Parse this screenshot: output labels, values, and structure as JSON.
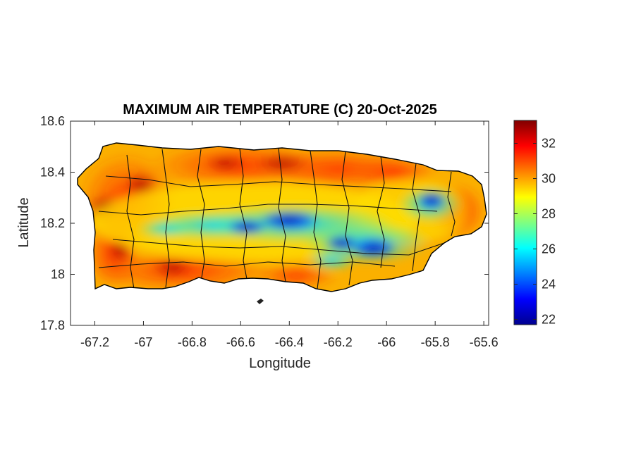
{
  "map": {
    "title": "MAXIMUM AIR TEMPERATURE (C) 20-Oct-2025",
    "xlabel": "Longitude",
    "ylabel": "Latitude",
    "xlim": [
      -67.3,
      -65.58
    ],
    "ylim": [
      17.8,
      18.6
    ],
    "xticks": [
      -67.2,
      -67,
      -66.8,
      -66.6,
      -66.4,
      -66.2,
      -66,
      -65.8,
      -65.6
    ],
    "xtick_labels": [
      "-67.2",
      "-67",
      "-66.8",
      "-66.6",
      "-66.4",
      "-66.2",
      "-66",
      "-65.8",
      "-65.6"
    ],
    "yticks": [
      17.8,
      18,
      18.2,
      18.4,
      18.6
    ],
    "ytick_labels": [
      "17.8",
      "18",
      "18.2",
      "18.4",
      "18.6"
    ],
    "colormap": "jet",
    "colorbar": {
      "range": [
        21.7,
        33.3
      ],
      "ticks": [
        22,
        24,
        26,
        28,
        30,
        32
      ],
      "tick_labels": [
        "22",
        "24",
        "26",
        "28",
        "30",
        "32"
      ],
      "stops": [
        "#00008f",
        "#0000ff",
        "#0080ff",
        "#00ffff",
        "#80ff80",
        "#ffff00",
        "#ff8000",
        "#ff0000",
        "#800000"
      ]
    },
    "region": "Puerto Rico",
    "pattern": "hot coastal lowlands (30-33 C) and cool central mountain ridge (22-26 C)",
    "hotspots": [
      {
        "lon": -67.17,
        "lat": 18.28,
        "temp": 32.5
      },
      {
        "lon": -67.1,
        "lat": 18.05,
        "temp": 32
      },
      {
        "lon": -67.05,
        "lat": 18.35,
        "temp": 32
      },
      {
        "lon": -66.45,
        "lat": 18.44,
        "temp": 32
      },
      {
        "lon": -66.7,
        "lat": 18.43,
        "temp": 31.5
      },
      {
        "lon": -66.1,
        "lat": 18.4,
        "temp": 31.5
      },
      {
        "lon": -66.65,
        "lat": 18.0,
        "temp": 31
      },
      {
        "lon": -66.9,
        "lat": 18.02,
        "temp": 31
      }
    ],
    "coldspots": [
      {
        "lon": -66.35,
        "lat": 18.21,
        "temp": 22.5
      },
      {
        "lon": -66.55,
        "lat": 18.17,
        "temp": 23
      },
      {
        "lon": -66.05,
        "lat": 18.1,
        "temp": 22.5
      },
      {
        "lon": -65.8,
        "lat": 18.29,
        "temp": 23
      },
      {
        "lon": -66.15,
        "lat": 18.12,
        "temp": 24
      },
      {
        "lon": -66.8,
        "lat": 18.15,
        "temp": 25.5
      },
      {
        "lon": -66.9,
        "lat": 18.17,
        "temp": 26.5
      }
    ]
  }
}
